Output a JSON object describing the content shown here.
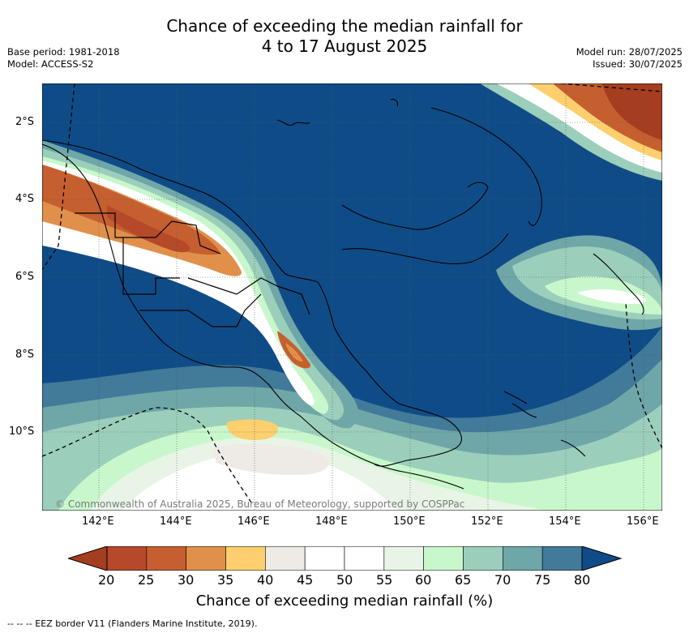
{
  "title": {
    "line1": "Chance of exceeding the median rainfall for",
    "line2": "4 to 17 August 2025"
  },
  "meta": {
    "base_period": "Base period: 1981-2018",
    "model": "Model: ACCESS-S2",
    "model_run": "Model run: 28/07/2025",
    "issued": "Issued: 30/07/2025"
  },
  "map": {
    "lat_labels": [
      "2°S",
      "4°S",
      "6°S",
      "8°S",
      "10°S"
    ],
    "lon_labels": [
      "142°E",
      "144°E",
      "146°E",
      "148°E",
      "150°E",
      "152°E",
      "154°E",
      "156°E"
    ],
    "watermark": "© Commonwealth of Australia 2025, Bureau of Meteorology, supported by COSPPac"
  },
  "colorbar": {
    "ticks": [
      "20",
      "25",
      "30",
      "35",
      "40",
      "45",
      "50",
      "55",
      "60",
      "65",
      "70",
      "75",
      "80"
    ],
    "label": "Chance of exceeding median rainfall (%)",
    "colors": [
      "#a53d20",
      "#b5492a",
      "#c65f30",
      "#e0904a",
      "#fdcf6e",
      "#eeebe6",
      "#ffffff",
      "#ffffff",
      "#e8f5e6",
      "#c9f7cc",
      "#9ccfbb",
      "#6fa6a8",
      "#427a9a",
      "#0f4c87",
      "#8b2d1a"
    ]
  },
  "footer": {
    "legend": "--  --  -- EEZ border V11 (Flanders Marine Institute, 2019)."
  }
}
